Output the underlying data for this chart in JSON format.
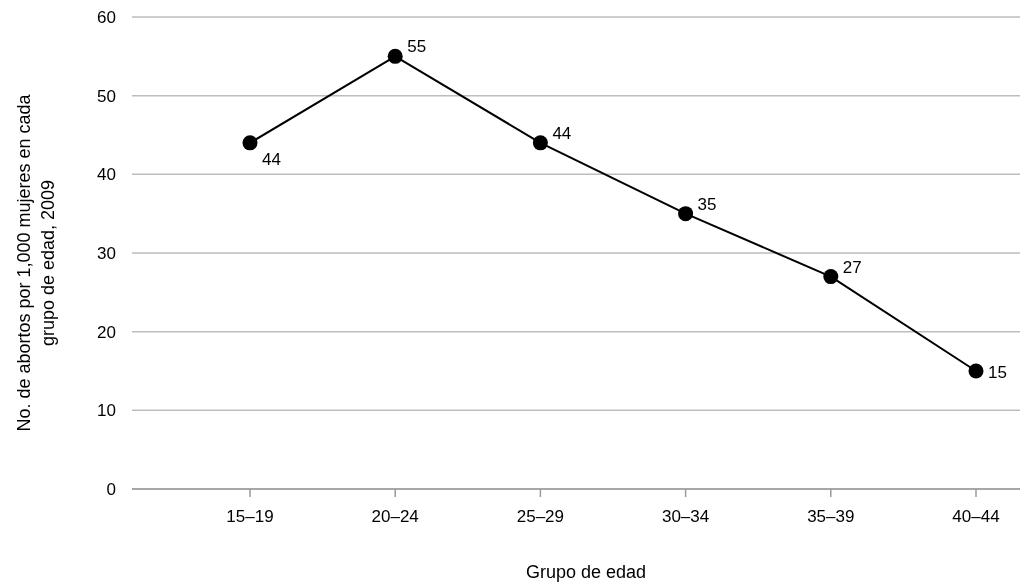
{
  "chart_data": {
    "type": "line",
    "categories": [
      "15–19",
      "20–24",
      "25–29",
      "30–34",
      "35–39",
      "40–44"
    ],
    "values": [
      44,
      55,
      44,
      35,
      27,
      15
    ],
    "color": "#000000",
    "marker": "circle",
    "line_style": "solid",
    "data_labels": true,
    "ylim": [
      0,
      60
    ],
    "yticks": [
      0,
      10,
      20,
      30,
      40,
      50,
      60
    ],
    "grid": "y",
    "xlabel": "Grupo de edad",
    "ylabel": "No. de abortos por 1,000 mujeres en cada\ngrupo de edad, 2009"
  }
}
